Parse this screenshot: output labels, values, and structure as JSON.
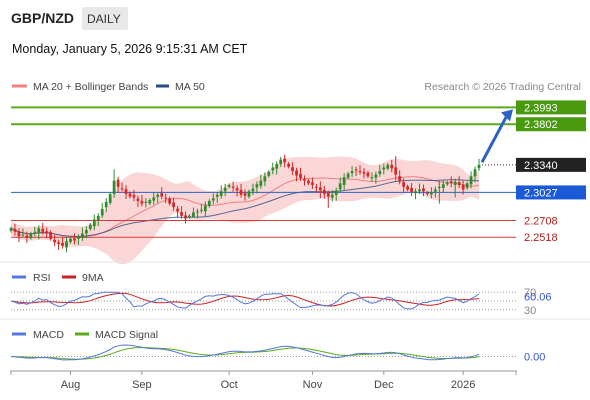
{
  "header": {
    "symbol": "GBP/NZD",
    "timeframe": "DAILY",
    "datetime": "Monday, January 5, 2026 9:15:31 AM CET"
  },
  "legend": {
    "ma20": "MA 20 + Bollinger Bands",
    "ma50": "MA 50",
    "credit": "Research © 2026 Trading Central"
  },
  "colors": {
    "up": "#2e8b2e",
    "down": "#d62828",
    "ma20": "#f08080",
    "band": "#f8c8c8",
    "ma50": "#2a4a80",
    "resistance": "#5aaa1e",
    "pivot": "#2a62c4",
    "support": "#d83a3a",
    "arrow": "#2a62c4"
  },
  "chart_data": [
    {
      "type": "candlestick",
      "ylim": [
        2.235,
        2.41
      ],
      "x_ticks": [
        "Aug",
        "Sep",
        "Oct",
        "Nov",
        "Dec",
        "2026"
      ],
      "current_price": "2.3340",
      "levels": [
        {
          "value": 2.3993,
          "label": "2.3993",
          "kind": "resistance"
        },
        {
          "value": 2.3802,
          "label": "2.3802",
          "kind": "resistance"
        },
        {
          "value": 2.3027,
          "label": "2.3027",
          "kind": "pivot"
        },
        {
          "value": 2.2708,
          "label": "2.2708",
          "kind": "support"
        },
        {
          "value": 2.2518,
          "label": "2.2518",
          "kind": "support"
        }
      ],
      "target_arrow": {
        "from": 2.337,
        "to": 2.3993
      },
      "closes": [
        2.262,
        2.258,
        2.253,
        2.255,
        2.251,
        2.256,
        2.258,
        2.262,
        2.258,
        2.256,
        2.25,
        2.246,
        2.244,
        2.242,
        2.247,
        2.25,
        2.248,
        2.252,
        2.256,
        2.26,
        2.266,
        2.272,
        2.276,
        2.284,
        2.292,
        2.301,
        2.316,
        2.309,
        2.307,
        2.301,
        2.298,
        2.297,
        2.293,
        2.29,
        2.292,
        2.294,
        2.297,
        2.3,
        2.298,
        2.296,
        2.29,
        2.286,
        2.281,
        2.276,
        2.273,
        2.276,
        2.28,
        2.281,
        2.283,
        2.288,
        2.293,
        2.296,
        2.3,
        2.304,
        2.308,
        2.311,
        2.308,
        2.305,
        2.3,
        2.299,
        2.304,
        2.307,
        2.312,
        2.316,
        2.321,
        2.326,
        2.331,
        2.335,
        2.34,
        2.337,
        2.332,
        2.327,
        2.322,
        2.319,
        2.316,
        2.313,
        2.311,
        2.309,
        2.305,
        2.301,
        2.298,
        2.3,
        2.305,
        2.313,
        2.32,
        2.324,
        2.327,
        2.328,
        2.326,
        2.324,
        2.321,
        2.32,
        2.323,
        2.327,
        2.331,
        2.334,
        2.33,
        2.323,
        2.315,
        2.309,
        2.306,
        2.303,
        2.304,
        2.306,
        2.304,
        2.301,
        2.303,
        2.306,
        2.309,
        2.312,
        2.314,
        2.313,
        2.315,
        2.311,
        2.306,
        2.313,
        2.321,
        2.329,
        2.334
      ],
      "rsi": {
        "value": "60.06",
        "levels": [
          30,
          70
        ]
      },
      "macd": {
        "value": "0.00"
      },
      "ma_legend": [
        "RSI",
        "9MA"
      ],
      "macd_legend": [
        "MACD",
        "MACD Signal"
      ]
    }
  ]
}
